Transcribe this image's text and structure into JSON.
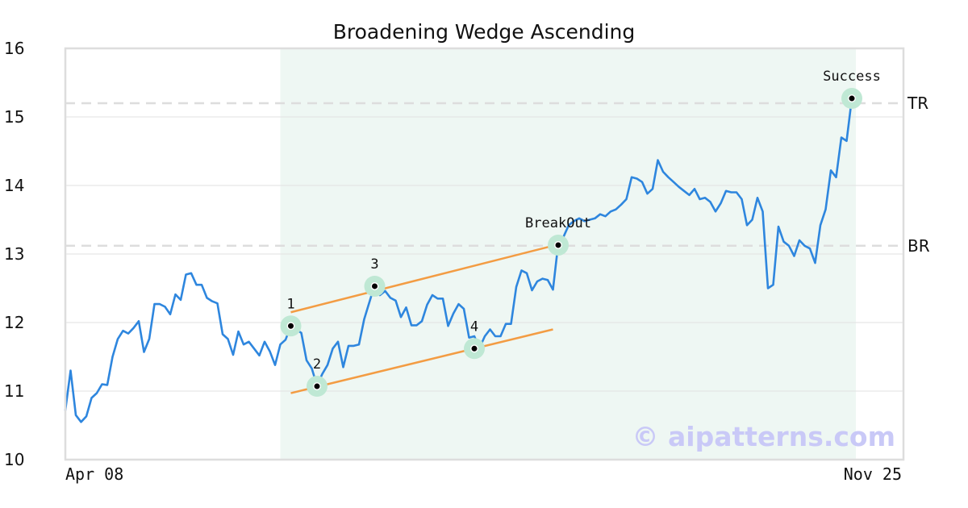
{
  "chart_data": {
    "type": "line",
    "title": "Broadening Wedge Ascending",
    "xlabel": "",
    "ylabel": "",
    "ylim": [
      10,
      16
    ],
    "yticks": [
      "10",
      "11",
      "12",
      "13",
      "14",
      "15",
      "16"
    ],
    "x_tick_labels": [
      "Apr 08",
      "Nov 25"
    ],
    "grid": "horizontal",
    "series": [
      {
        "values": [
          10.72,
          11.3,
          10.65,
          10.55,
          10.63,
          10.9,
          10.97,
          11.1,
          11.09,
          11.5,
          11.76,
          11.88,
          11.84,
          11.92,
          12.02,
          11.57,
          11.76,
          12.27,
          12.27,
          12.23,
          12.12,
          12.41,
          12.33,
          12.7,
          12.72,
          12.55,
          12.55,
          12.36,
          12.31,
          12.28,
          11.83,
          11.76,
          11.53,
          11.87,
          11.68,
          11.72,
          11.62,
          11.52,
          11.72,
          11.58,
          11.38,
          11.68,
          11.75,
          11.95,
          11.9,
          11.85,
          11.45,
          11.33,
          11.08,
          11.25,
          11.38,
          11.62,
          11.72,
          11.35,
          11.66,
          11.66,
          11.68,
          12.05,
          12.3,
          12.55,
          12.4,
          12.46,
          12.36,
          12.32,
          12.08,
          12.22,
          11.96,
          11.96,
          12.02,
          12.26,
          12.4,
          12.35,
          12.35,
          11.95,
          12.13,
          12.27,
          12.2,
          11.78,
          11.8,
          11.63,
          11.8,
          11.9,
          11.8,
          11.8,
          11.98,
          11.98,
          12.52,
          12.76,
          12.72,
          12.47,
          12.6,
          12.64,
          12.62,
          12.48,
          13.15,
          13.25,
          13.42,
          13.48,
          13.52,
          13.48,
          13.5,
          13.52,
          13.58,
          13.55,
          13.62,
          13.65,
          13.72,
          13.8,
          14.12,
          14.1,
          14.05,
          13.88,
          13.95,
          14.37,
          14.2,
          14.12,
          14.05,
          13.98,
          13.92,
          13.86,
          13.95,
          13.8,
          13.82,
          13.76,
          13.62,
          13.74,
          13.92,
          13.9,
          13.9,
          13.8,
          13.42,
          13.5,
          13.82,
          13.62,
          12.5,
          12.55,
          13.4,
          13.18,
          13.12,
          12.97,
          13.2,
          13.12,
          13.08,
          12.87,
          13.42,
          13.65,
          14.22,
          14.12,
          14.7,
          14.65,
          15.27
        ]
      }
    ],
    "reference_lines": [
      {
        "label": "TR",
        "y": 15.2
      },
      {
        "label": "BR",
        "y": 13.12
      }
    ],
    "highlight_region": {
      "from_index": 41,
      "to_index": 150
    },
    "trendlines": [
      {
        "from": {
          "index": 43,
          "y": 12.15
        },
        "to": {
          "index": 93,
          "y": 13.12
        }
      },
      {
        "from": {
          "index": 43,
          "y": 10.97
        },
        "to": {
          "index": 93,
          "y": 11.9
        }
      }
    ],
    "annotations": [
      {
        "label": "1",
        "index": 43,
        "y": 11.95
      },
      {
        "label": "2",
        "index": 48,
        "y": 11.07
      },
      {
        "label": "3",
        "index": 59,
        "y": 12.53
      },
      {
        "label": "4",
        "index": 78,
        "y": 11.62
      },
      {
        "label": "BreakOut",
        "index": 94,
        "y": 13.13
      },
      {
        "label": "Success",
        "index": 150,
        "y": 15.27
      }
    ],
    "watermark": "© aipatterns.com",
    "colors": {
      "line": "#2e86de",
      "trendline": "#f39c43",
      "highlight": "#eef7f3",
      "marker_halo": "#bfe8d4",
      "marker_dot": "#000000",
      "reference_line": "#dddddd",
      "grid": "#e2e2e2",
      "frame": "#dddddd",
      "watermark": "#c9c9f7"
    }
  }
}
